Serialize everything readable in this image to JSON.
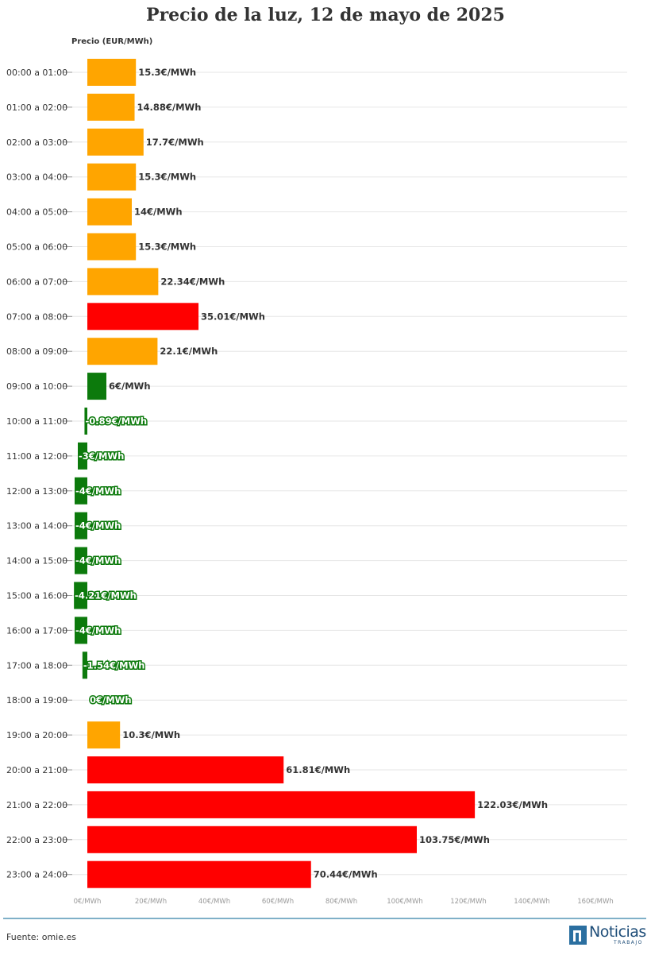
{
  "title": "Precio de la luz, 12 de mayo de 2025",
  "source": "Fuente: omie.es",
  "logo": {
    "name": "Noticias",
    "subtitle": "TRABAJO"
  },
  "colors": {
    "low": "#FFA500",
    "high": "#FF0000",
    "green": "#0C7A0C",
    "grid": "#e6e6e6",
    "footer_line": "#7fb0c8",
    "logo": "#2b6fa0"
  },
  "chart_data": {
    "type": "bar",
    "orientation": "horizontal",
    "title": "Precio de la luz, 12 de mayo de 2025",
    "xlabel": "Precio (EUR/MWh)",
    "ylabel": "",
    "xlim": [
      0,
      160
    ],
    "grid": true,
    "x_ticks": [
      0,
      20,
      40,
      60,
      80,
      100,
      120,
      140,
      160
    ],
    "x_tick_labels": [
      "0€/MWh",
      "20€/MWh",
      "40€/MWh",
      "60€/MWh",
      "80€/MWh",
      "100€/MWh",
      "120€/MWh",
      "140€/MWh",
      "160€/MWh"
    ],
    "categories": [
      "00:00 a 01:00",
      "01:00 a 02:00",
      "02:00 a 03:00",
      "03:00 a 04:00",
      "04:00 a 05:00",
      "05:00 a 06:00",
      "06:00 a 07:00",
      "07:00 a 08:00",
      "08:00 a 09:00",
      "09:00 a 10:00",
      "10:00 a 11:00",
      "11:00 a 12:00",
      "12:00 a 13:00",
      "13:00 a 14:00",
      "14:00 a 15:00",
      "15:00 a 16:00",
      "16:00 a 17:00",
      "17:00 a 18:00",
      "18:00 a 19:00",
      "19:00 a 20:00",
      "20:00 a 21:00",
      "21:00 a 22:00",
      "22:00 a 23:00",
      "23:00 a 24:00"
    ],
    "values": [
      15.3,
      14.88,
      17.7,
      15.3,
      14,
      15.3,
      22.34,
      35.01,
      22.1,
      6,
      -0.89,
      -3,
      -4,
      -4,
      -4,
      -4.21,
      -4,
      -1.54,
      0,
      10.3,
      61.81,
      122.03,
      103.75,
      70.44
    ],
    "labels": [
      "15.3€/MWh",
      "14.88€/MWh",
      "17.7€/MWh",
      "15.3€/MWh",
      "14€/MWh",
      "15.3€/MWh",
      "22.34€/MWh",
      "35.01€/MWh",
      "22.1€/MWh",
      "6€/MWh",
      "-0.89€/MWh",
      "-3€/MWh",
      "-4€/MWh",
      "-4€/MWh",
      "-4€/MWh",
      "-4.21€/MWh",
      "-4€/MWh",
      "-1.54€/MWh",
      "0€/MWh",
      "10.3€/MWh",
      "61.81€/MWh",
      "122.03€/MWh",
      "103.75€/MWh",
      "70.44€/MWh"
    ],
    "bar_colors": [
      "#FFA500",
      "#FFA500",
      "#FFA500",
      "#FFA500",
      "#FFA500",
      "#FFA500",
      "#FFA500",
      "#FF0000",
      "#FFA500",
      "#0C7A0C",
      "#0C7A0C",
      "#0C7A0C",
      "#0C7A0C",
      "#0C7A0C",
      "#0C7A0C",
      "#0C7A0C",
      "#0C7A0C",
      "#0C7A0C",
      "#0C7A0C",
      "#FFA500",
      "#FF0000",
      "#FF0000",
      "#FF0000",
      "#FF0000"
    ]
  }
}
